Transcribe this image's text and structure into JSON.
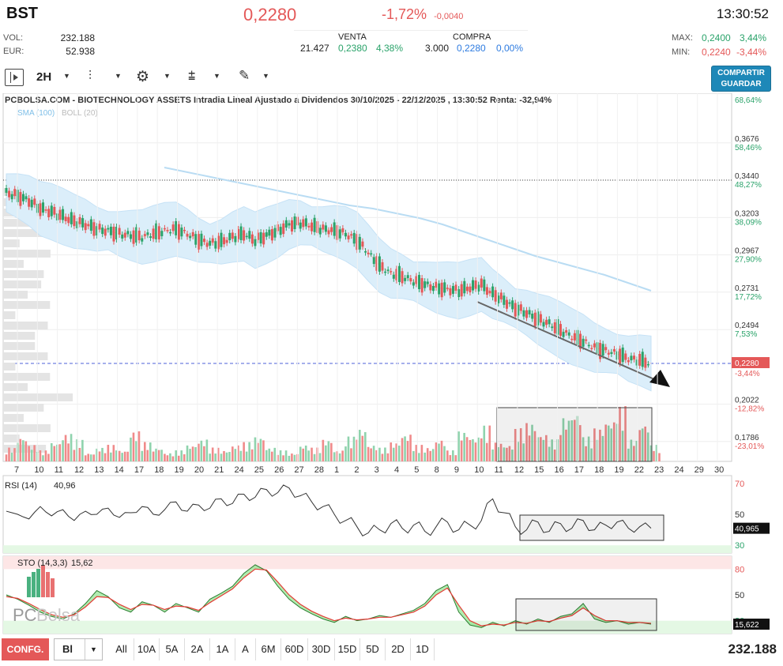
{
  "header": {
    "ticker": "BST",
    "price": "0,2280",
    "change_pct": "-1,72%",
    "change_abs": "-0,0040",
    "time": "13:30:52",
    "vol_label": "VOL:",
    "vol_value": "232.188",
    "eur_label": "EUR:",
    "eur_value": "52.938",
    "venta_label": "VENTA",
    "venta_qty": "21.427",
    "venta_price": "0,2380",
    "venta_pct": "4,38%",
    "compra_label": "COMPRA",
    "compra_qty": "3.000",
    "compra_price": "0,2280",
    "compra_pct": "0,00%",
    "max_label": "MAX:",
    "max_value": "0,2400",
    "max_pct": "3,44%",
    "min_label": "MIN:",
    "min_value": "0,2240",
    "min_pct": "-3,44%"
  },
  "toolbar": {
    "interval": "2H",
    "share_line1": "COMPARTIR",
    "share_line2": "GUARDAR"
  },
  "bottom": {
    "config_label": "CONFG.",
    "select_value": "Bl",
    "periods": [
      "All",
      "10A",
      "5A",
      "2A",
      "1A",
      "A",
      "6M",
      "60D",
      "30D",
      "15D",
      "5D",
      "2D",
      "1D"
    ],
    "total_volume": "232.188"
  },
  "colors": {
    "up": "#2aa36a",
    "down": "#e45858",
    "boll_fill": "#dbeefa",
    "sma": "#b9dcf3",
    "accent": "#1e88b8"
  },
  "chart_data": {
    "type": "candlestick",
    "title": "PCBOLSA.COM - BIOTECHNOLOGY ASSETS Intradia Lineal Ajustado a Dividendos 30/10/2025 - 22/12/2025 , 13:30:52 Renta: -32,94%",
    "legend": [
      "SMA (100)",
      "BOLL (20)"
    ],
    "price_axis": {
      "ticks": [
        {
          "price": "0,3676",
          "pct": "58,46%"
        },
        {
          "price": "0,3440",
          "pct": "48,27%"
        },
        {
          "price": "0,3203",
          "pct": "38,09%"
        },
        {
          "price": "0,2967",
          "pct": "27,90%"
        },
        {
          "price": "0,2731",
          "pct": "17,72%"
        },
        {
          "price": "0,2494",
          "pct": "7,53%"
        },
        {
          "price": "0,2022",
          "pct": "-12,82%"
        },
        {
          "price": "0,1786",
          "pct": "-23,01%"
        }
      ],
      "top_pct": "68,64%",
      "current": {
        "price": "0,2280",
        "pct": "-3,44%"
      },
      "ylim": [
        0.165,
        0.392
      ]
    },
    "x_ticks": [
      "7",
      "10",
      "11",
      "12",
      "13",
      "14",
      "17",
      "18",
      "19",
      "20",
      "21",
      "24",
      "25",
      "26",
      "27",
      "28",
      "1",
      "2",
      "3",
      "4",
      "5",
      "8",
      "9",
      "10",
      "11",
      "12",
      "15",
      "16",
      "17",
      "18",
      "19",
      "22",
      "23",
      "24",
      "29",
      "30"
    ],
    "price_path": [
      0.336,
      0.334,
      0.331,
      0.326,
      0.324,
      0.321,
      0.318,
      0.316,
      0.313,
      0.312,
      0.31,
      0.309,
      0.308,
      0.31,
      0.312,
      0.313,
      0.31,
      0.306,
      0.304,
      0.305,
      0.308,
      0.31,
      0.306,
      0.309,
      0.312,
      0.316,
      0.317,
      0.315,
      0.313,
      0.312,
      0.31,
      0.306,
      0.298,
      0.29,
      0.285,
      0.283,
      0.28,
      0.278,
      0.276,
      0.275,
      0.274,
      0.276,
      0.278,
      0.272,
      0.268,
      0.263,
      0.26,
      0.256,
      0.253,
      0.249,
      0.245,
      0.242,
      0.238,
      0.236,
      0.234,
      0.231,
      0.23,
      0.228
    ],
    "sma100": [
      0.352,
      0.349,
      0.346,
      0.343,
      0.34,
      0.337,
      0.334,
      0.331,
      0.328,
      0.326,
      0.323,
      0.32,
      0.316,
      0.311,
      0.306,
      0.301,
      0.296,
      0.292,
      0.288,
      0.284,
      0.279,
      0.274
    ],
    "volume": [
      5,
      9,
      6,
      4,
      7,
      10,
      8,
      3,
      5,
      6,
      4,
      11,
      7,
      5,
      3,
      4,
      6,
      8,
      5,
      4,
      6,
      7,
      9,
      5,
      4,
      3,
      6,
      5,
      8,
      4,
      9,
      12,
      6,
      5,
      7,
      10,
      6,
      5,
      8,
      4,
      11,
      9,
      13,
      7,
      6,
      12,
      14,
      10,
      8,
      16,
      18,
      9,
      12,
      15,
      20,
      8,
      14,
      6
    ],
    "rsi": {
      "label": "RSI (14)",
      "value": "40,96",
      "readout": "40,965",
      "levels": [
        "70",
        "50",
        "30"
      ],
      "values": [
        52,
        50,
        47,
        55,
        49,
        53,
        46,
        52,
        50,
        54,
        48,
        51,
        55,
        50,
        53,
        58,
        52,
        56,
        54,
        60,
        57,
        63,
        61,
        66,
        64,
        67,
        62,
        58,
        55,
        50,
        46,
        42,
        38,
        40,
        44,
        41,
        43,
        39,
        42,
        45,
        40,
        43,
        46,
        60,
        51,
        42,
        40,
        45,
        39,
        44,
        41,
        46,
        40,
        43,
        45,
        41,
        42,
        41
      ]
    },
    "sto": {
      "label": "STO (14,3,3)",
      "value": "15,62",
      "readout": "15,622",
      "levels": [
        "80",
        "50",
        "20"
      ],
      "k": [
        50,
        45,
        38,
        30,
        25,
        22,
        28,
        40,
        55,
        48,
        35,
        30,
        42,
        38,
        30,
        40,
        35,
        30,
        45,
        52,
        60,
        75,
        85,
        78,
        60,
        45,
        35,
        28,
        22,
        18,
        25,
        20,
        22,
        26,
        24,
        28,
        32,
        40,
        55,
        62,
        30,
        15,
        12,
        18,
        14,
        20,
        16,
        22,
        18,
        25,
        28,
        40,
        22,
        18,
        20,
        16,
        18,
        16
      ],
      "d": [
        48,
        46,
        40,
        33,
        27,
        24,
        27,
        36,
        48,
        47,
        39,
        33,
        39,
        38,
        33,
        37,
        36,
        32,
        41,
        49,
        57,
        70,
        80,
        79,
        65,
        50,
        39,
        31,
        25,
        20,
        23,
        21,
        22,
        24,
        24,
        27,
        30,
        37,
        50,
        58,
        38,
        20,
        14,
        16,
        15,
        18,
        17,
        20,
        19,
        23,
        26,
        35,
        26,
        20,
        20,
        18,
        18,
        17
      ]
    },
    "annotations": [
      "descending trendline with arrow",
      "volume highlight box",
      "RSI highlight box",
      "STO highlight box"
    ]
  }
}
